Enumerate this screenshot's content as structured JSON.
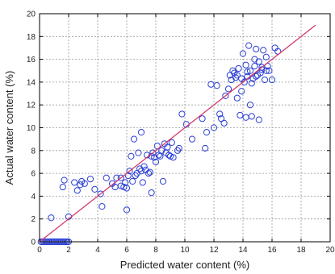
{
  "chart_data": {
    "type": "scatter",
    "title": "",
    "xlabel": "Predicted water content (%)",
    "ylabel": "Actual water content (%)",
    "xlim": [
      0,
      20
    ],
    "ylim": [
      0,
      20
    ],
    "xticks": [
      "0",
      "2",
      "4",
      "6",
      "8",
      "10",
      "12",
      "14",
      "16",
      "18",
      "20"
    ],
    "yticks": [
      "0",
      "2",
      "4",
      "6",
      "8",
      "10",
      "12",
      "14",
      "16",
      "18",
      "20"
    ],
    "grid": true,
    "colors": {
      "points": "#2b3fd6",
      "fit_line": "#d23a6a",
      "frame": "#000000"
    },
    "fit_line": {
      "x": [
        0,
        19
      ],
      "y": [
        0,
        19
      ]
    },
    "series": [
      {
        "points": [
          [
            0.1,
            0
          ],
          [
            0.2,
            0
          ],
          [
            0.3,
            0
          ],
          [
            0.4,
            0
          ],
          [
            0.5,
            0
          ],
          [
            0.6,
            0
          ],
          [
            0.7,
            0
          ],
          [
            0.8,
            0
          ],
          [
            0.9,
            0
          ],
          [
            1.0,
            0
          ],
          [
            1.1,
            0
          ],
          [
            1.2,
            0
          ],
          [
            1.3,
            0
          ],
          [
            1.4,
            0
          ],
          [
            1.5,
            0
          ],
          [
            1.6,
            0
          ],
          [
            1.7,
            0
          ],
          [
            1.8,
            0
          ],
          [
            1.9,
            0
          ],
          [
            2.0,
            0
          ],
          [
            0.8,
            2.1
          ],
          [
            2.0,
            2.2
          ],
          [
            1.6,
            4.8
          ],
          [
            1.7,
            5.4
          ],
          [
            2.4,
            5.2
          ],
          [
            2.6,
            4.5
          ],
          [
            2.8,
            5.0
          ],
          [
            2.9,
            5.3
          ],
          [
            3.1,
            5.1
          ],
          [
            3.5,
            5.5
          ],
          [
            3.8,
            4.6
          ],
          [
            4.2,
            4.2
          ],
          [
            4.3,
            3.1
          ],
          [
            4.6,
            5.6
          ],
          [
            5.0,
            5.1
          ],
          [
            5.2,
            4.8
          ],
          [
            5.3,
            5.6
          ],
          [
            5.6,
            4.9
          ],
          [
            5.6,
            5.6
          ],
          [
            5.8,
            4.8
          ],
          [
            5.9,
            5.2
          ],
          [
            6.0,
            2.8
          ],
          [
            6.0,
            4.7
          ],
          [
            6.1,
            5.8
          ],
          [
            6.2,
            6.2
          ],
          [
            6.3,
            7.5
          ],
          [
            6.4,
            5.3
          ],
          [
            6.5,
            9.0
          ],
          [
            6.6,
            5.8
          ],
          [
            6.7,
            6.0
          ],
          [
            6.8,
            7.8
          ],
          [
            6.9,
            6.4
          ],
          [
            7.0,
            6.2
          ],
          [
            7.0,
            9.6
          ],
          [
            7.1,
            5.2
          ],
          [
            7.2,
            6.6
          ],
          [
            7.3,
            6.3
          ],
          [
            7.4,
            7.6
          ],
          [
            7.5,
            6.0
          ],
          [
            7.6,
            6.1
          ],
          [
            7.7,
            7.5
          ],
          [
            7.7,
            4.3
          ],
          [
            7.8,
            7.8
          ],
          [
            7.9,
            7.4
          ],
          [
            8.0,
            7.0
          ],
          [
            8.1,
            8.4
          ],
          [
            8.2,
            7.6
          ],
          [
            8.3,
            7.5
          ],
          [
            8.4,
            8.0
          ],
          [
            8.5,
            5.3
          ],
          [
            8.6,
            8.6
          ],
          [
            8.7,
            7.8
          ],
          [
            8.8,
            8.3
          ],
          [
            8.9,
            7.6
          ],
          [
            9.0,
            7.5
          ],
          [
            9.1,
            8.7
          ],
          [
            9.2,
            7.4
          ],
          [
            9.5,
            8.0
          ],
          [
            9.6,
            8.2
          ],
          [
            9.8,
            11.2
          ],
          [
            10.1,
            10.3
          ],
          [
            10.5,
            9.0
          ],
          [
            11.2,
            10.8
          ],
          [
            11.4,
            8.2
          ],
          [
            11.5,
            9.6
          ],
          [
            11.8,
            13.8
          ],
          [
            12.0,
            10.0
          ],
          [
            12.2,
            13.7
          ],
          [
            12.4,
            11.2
          ],
          [
            12.5,
            10.8
          ],
          [
            12.7,
            10.4
          ],
          [
            12.8,
            12.8
          ],
          [
            13.0,
            13.4
          ],
          [
            13.1,
            14.6
          ],
          [
            13.2,
            14.2
          ],
          [
            13.3,
            15.0
          ],
          [
            13.4,
            14.8
          ],
          [
            13.5,
            14.4
          ],
          [
            13.6,
            12.6
          ],
          [
            13.7,
            15.2
          ],
          [
            13.8,
            11.1
          ],
          [
            13.9,
            14.3
          ],
          [
            14.0,
            16.5
          ],
          [
            14.1,
            14.0
          ],
          [
            14.2,
            15.5
          ],
          [
            14.3,
            14.9
          ],
          [
            14.4,
            17.2
          ],
          [
            14.5,
            15.0
          ],
          [
            14.6,
            11.0
          ],
          [
            14.7,
            14.3
          ],
          [
            14.8,
            16.0
          ],
          [
            14.9,
            16.9
          ],
          [
            15.0,
            14.6
          ],
          [
            15.1,
            15.8
          ],
          [
            15.2,
            14.8
          ],
          [
            15.3,
            15.3
          ],
          [
            15.4,
            16.8
          ],
          [
            15.5,
            14.2
          ],
          [
            15.6,
            15.0
          ],
          [
            15.7,
            15.4
          ],
          [
            15.8,
            15.0
          ],
          [
            16.0,
            14.2
          ],
          [
            16.2,
            17.0
          ],
          [
            16.4,
            16.7
          ],
          [
            14.5,
            12.0
          ],
          [
            15.1,
            10.7
          ],
          [
            14.2,
            10.9
          ],
          [
            13.9,
            13.2
          ],
          [
            14.6,
            13.9
          ],
          [
            14.9,
            14.5
          ],
          [
            15.3,
            15.1
          ],
          [
            13.6,
            14.6
          ],
          [
            14.3,
            14.5
          ],
          [
            15.6,
            16.2
          ],
          [
            14.8,
            15.4
          ]
        ]
      }
    ]
  }
}
